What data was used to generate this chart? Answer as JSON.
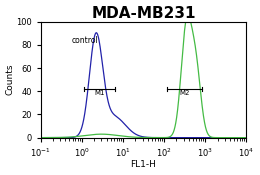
{
  "title": "MDA-MB231",
  "xlabel": "FL1-H",
  "ylabel": "Counts",
  "xlim": [
    0.1,
    10000
  ],
  "ylim": [
    0,
    100
  ],
  "yticks": [
    0,
    20,
    40,
    60,
    80,
    100
  ],
  "control_label": "control",
  "m1_label": "M1",
  "m2_label": "M2",
  "control_color": "#2222aa",
  "sample_color": "#44bb44",
  "bg_color": "#ffffff",
  "title_fontsize": 11,
  "axis_fontsize": 6.5,
  "tick_fontsize": 6,
  "control_peak_x": 2.2,
  "control_peak_y": 85,
  "sample_peak1_x": 350,
  "sample_peak1_y": 95,
  "sample_peak2_x": 600,
  "sample_peak2_y": 55,
  "m1_x_start": 1.1,
  "m1_x_end": 6.5,
  "m1_y": 42,
  "m2_x_start": 120,
  "m2_x_end": 850,
  "m2_y": 42
}
